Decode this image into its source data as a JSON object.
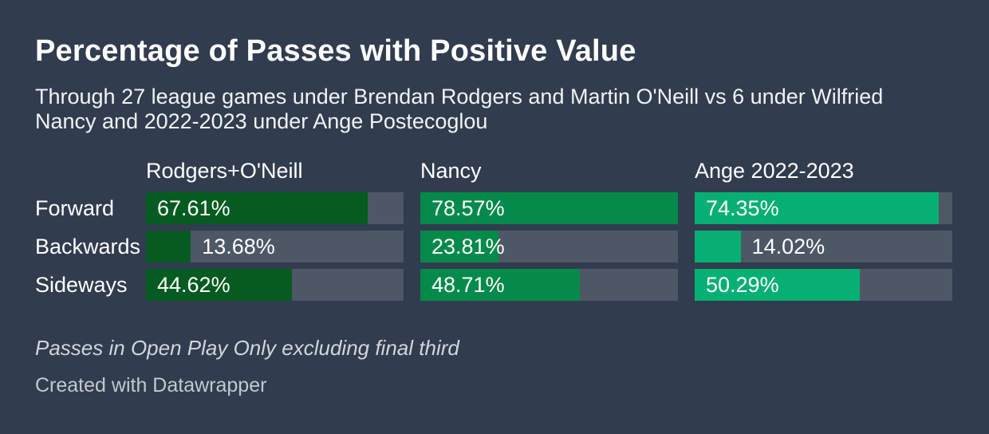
{
  "header": {
    "title": "Percentage of Passes with Positive Value",
    "subtitle": "Through 27 league games under Brendan Rodgers and Martin O'Neill vs 6 under Wilfried Nancy and 2022-2023 under Ange Postecoglou"
  },
  "footer": {
    "footnote": "Passes in Open Play Only excluding final third",
    "attribution": "Created with Datawrapper"
  },
  "colors": {
    "background": "#313C4E",
    "bar_track": "#4D5765",
    "text": "#FFFFFF",
    "text_soft": "#F1F3F5",
    "footnote_text": "#D2D6DC",
    "attribution_text": "#C2C8CF",
    "series_colors": [
      "#065B21",
      "#048A4B",
      "#06B072"
    ]
  },
  "chart_data": {
    "type": "bar",
    "variant": "grouped-horizontal-split-bars",
    "title": "Percentage of Passes with Positive Value",
    "categories": [
      "Forward",
      "Backwards",
      "Sideways"
    ],
    "series": [
      {
        "name": "Rodgers+O'Neill",
        "color": "#065B21",
        "values": [
          67.61,
          13.68,
          44.62
        ],
        "labels": [
          "67.61%",
          "13.68%",
          "44.62%"
        ]
      },
      {
        "name": "Nancy",
        "color": "#048A4B",
        "values": [
          78.57,
          23.81,
          48.71
        ],
        "labels": [
          "78.57%",
          "23.81%",
          "48.71%"
        ]
      },
      {
        "name": "Ange 2022-2023",
        "color": "#06B072",
        "values": [
          74.35,
          14.02,
          50.29
        ],
        "labels": [
          "74.35%",
          "14.02%",
          "50.29%"
        ]
      }
    ],
    "xmax": 78.57,
    "value_format": "percent",
    "grid": false,
    "legend_position": "column-headers",
    "label_inside_threshold": 0.25
  }
}
